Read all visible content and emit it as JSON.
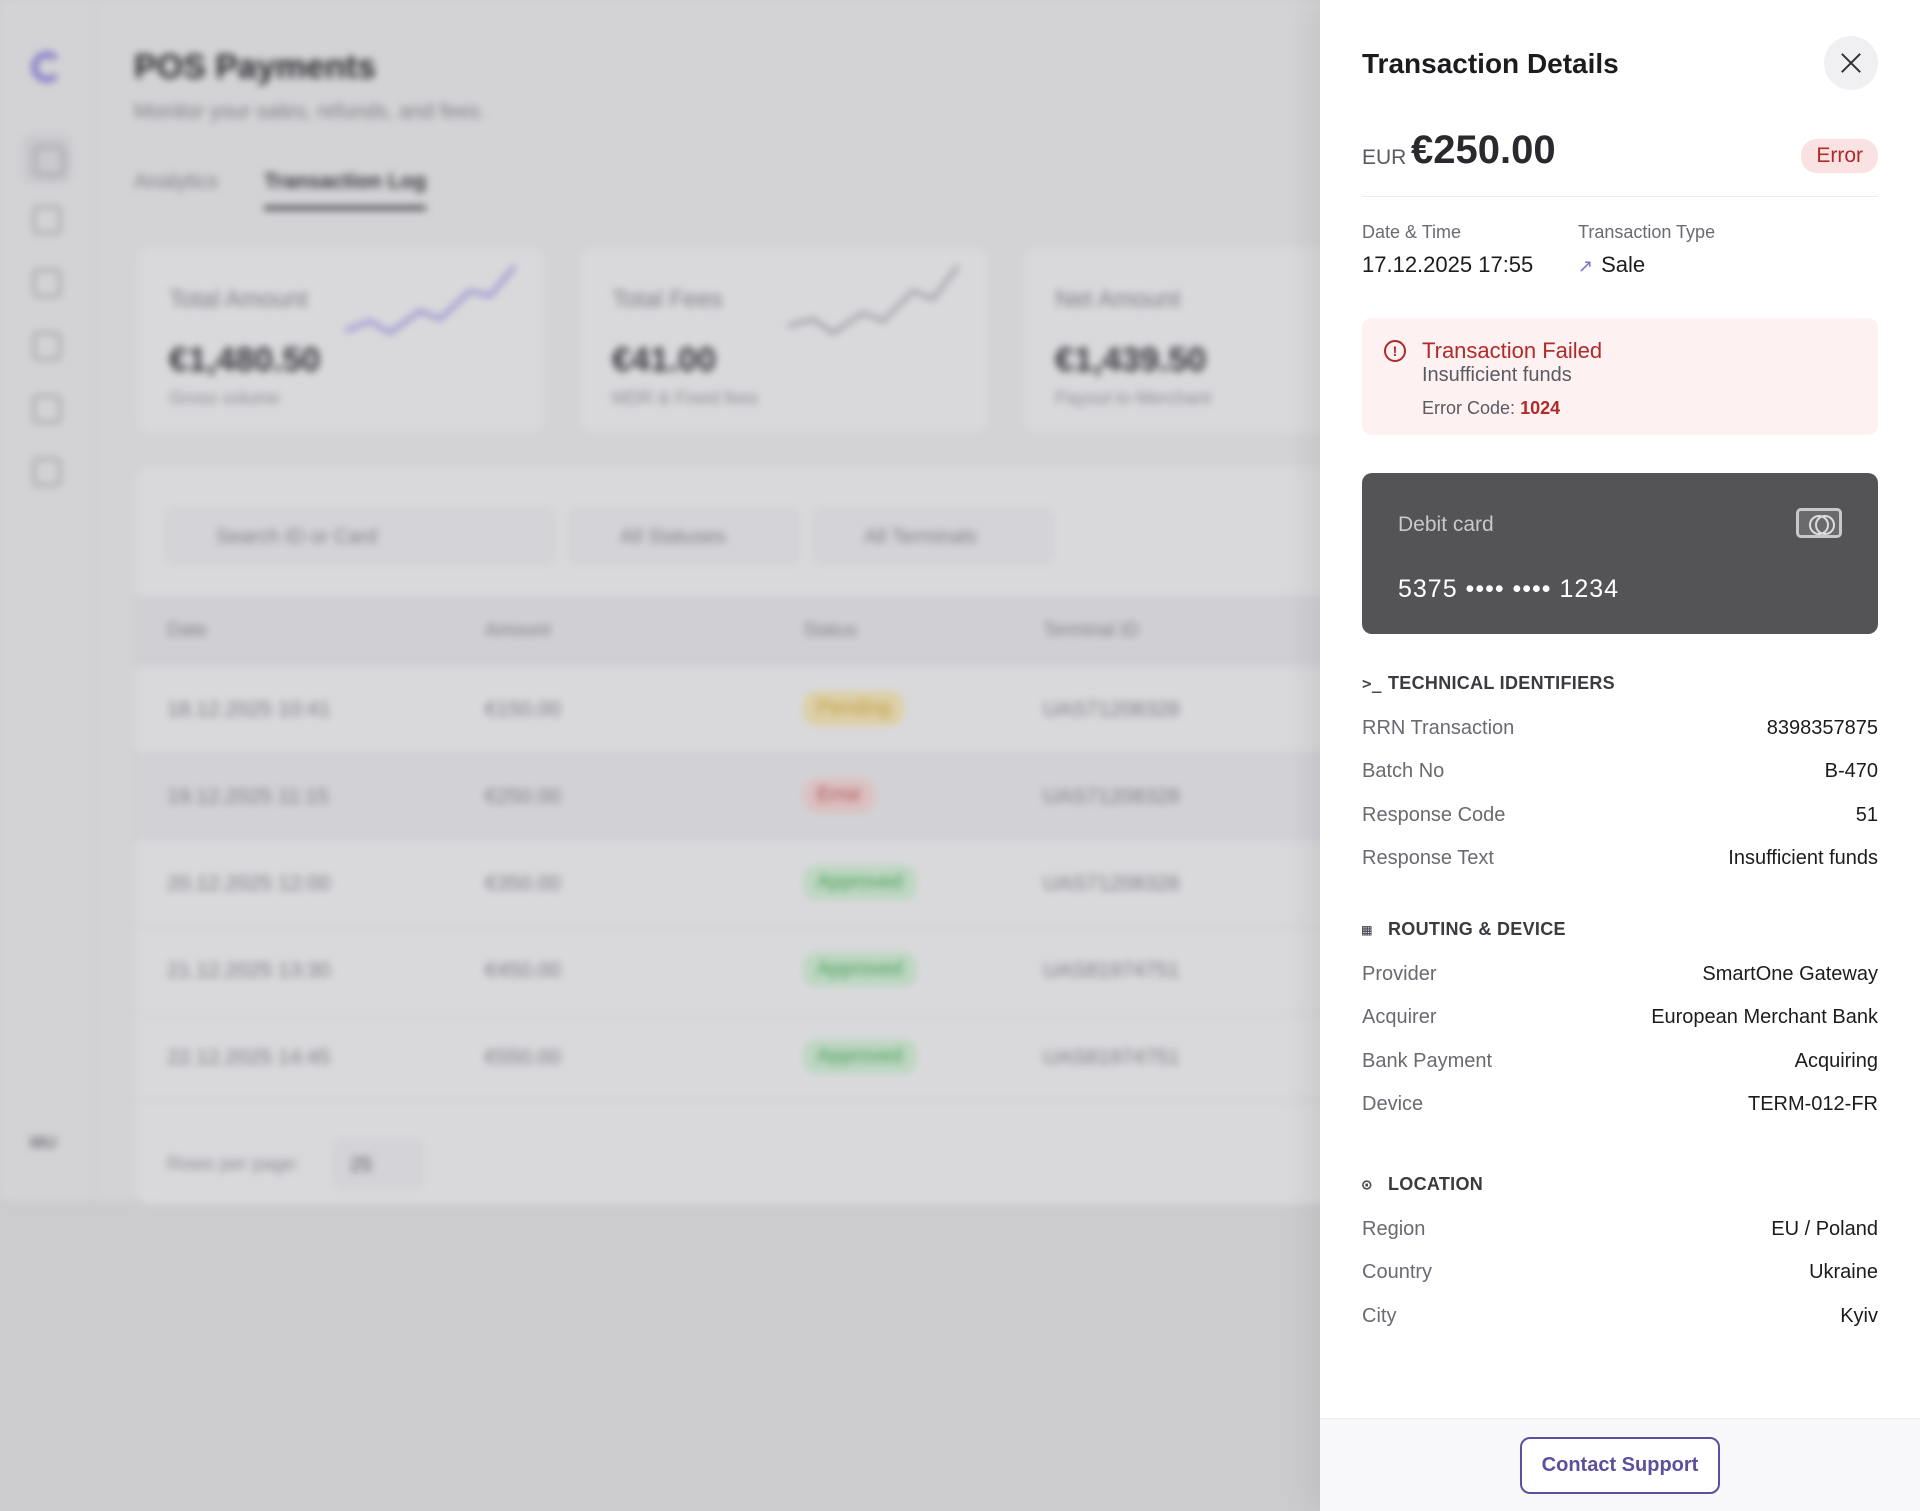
{
  "background": {
    "page_title": "POS Payments",
    "page_subtitle": "Monitor your sales, refunds, and fees.",
    "tabs": [
      "Analytics",
      "Transaction Log"
    ],
    "user_initials": "MU",
    "stats": [
      {
        "label": "Total Amount",
        "value": "€1,480.50",
        "sub": "Gross volume"
      },
      {
        "label": "Total Fees",
        "value": "€41.00",
        "sub": "MDR & Fixed fees"
      },
      {
        "label": "Net Amount",
        "value": "€1,439.50",
        "sub": "Payout to Merchant"
      }
    ],
    "filters": {
      "search_placeholder": "Search ID or Card",
      "status": "All Statuses",
      "terminal": "All Terminals"
    },
    "columns": [
      "Date",
      "Amount",
      "Status",
      "Terminal ID"
    ],
    "rows": [
      {
        "date": "18.12.2025 10:41",
        "amount": "€150.00",
        "status": "Pending",
        "terminal": "UAS71208328"
      },
      {
        "date": "19.12.2025 11:15",
        "amount": "€250.00",
        "status": "Error",
        "terminal": "UAS71208328"
      },
      {
        "date": "20.12.2025 12:00",
        "amount": "€350.00",
        "status": "Approved",
        "terminal": "UAS71208328"
      },
      {
        "date": "21.12.2025 13:30",
        "amount": "€450.00",
        "status": "Approved",
        "terminal": "UAS81974751"
      },
      {
        "date": "22.12.2025 14:45",
        "amount": "€550.00",
        "status": "Approved",
        "terminal": "UAS81974751"
      }
    ],
    "rows_per_page_label": "Rows per page:",
    "rows_per_page_value": "25"
  },
  "drawer": {
    "title": "Transaction Details",
    "currency": "EUR",
    "amount": "€250.00",
    "status": "Error",
    "date_time_label": "Date & Time",
    "date_time_value": "17.12.2025 17:55",
    "type_label": "Transaction Type",
    "type_value": "Sale",
    "alert": {
      "title": "Transaction Failed",
      "message": "Insufficient funds",
      "code_label": "Error Code:",
      "code_value": "1024"
    },
    "card": {
      "type": "Debit card",
      "number": "5375 •••• •••• 1234"
    },
    "sections": {
      "technical": {
        "title": "TECHNICAL IDENTIFIERS",
        "items": [
          {
            "k": "RRN Transaction",
            "v": "8398357875"
          },
          {
            "k": "Batch No",
            "v": "B-470"
          },
          {
            "k": "Response Code",
            "v": "51"
          },
          {
            "k": "Response Text",
            "v": "Insufficient funds"
          }
        ]
      },
      "routing": {
        "title": "ROUTING & DEVICE",
        "items": [
          {
            "k": "Provider",
            "v": "SmartOne Gateway"
          },
          {
            "k": "Acquirer",
            "v": "European Merchant Bank"
          },
          {
            "k": "Bank Payment",
            "v": "Acquiring"
          },
          {
            "k": "Device",
            "v": "TERM-012-FR"
          }
        ]
      },
      "location": {
        "title": "LOCATION",
        "items": [
          {
            "k": "Region",
            "v": "EU / Poland"
          },
          {
            "k": "Country",
            "v": "Ukraine"
          },
          {
            "k": "City",
            "v": "Kyiv"
          }
        ]
      }
    },
    "support_button": "Contact Support"
  },
  "colors": {
    "accent": "#5e4f9e",
    "error": "#b02a2a",
    "card": "#545456"
  },
  "icons": [
    "close-icon",
    "alert-circle-icon",
    "arrow-up-right-icon",
    "card-brand-icon",
    "terminal-icon",
    "building-icon",
    "location-pin-icon"
  ]
}
